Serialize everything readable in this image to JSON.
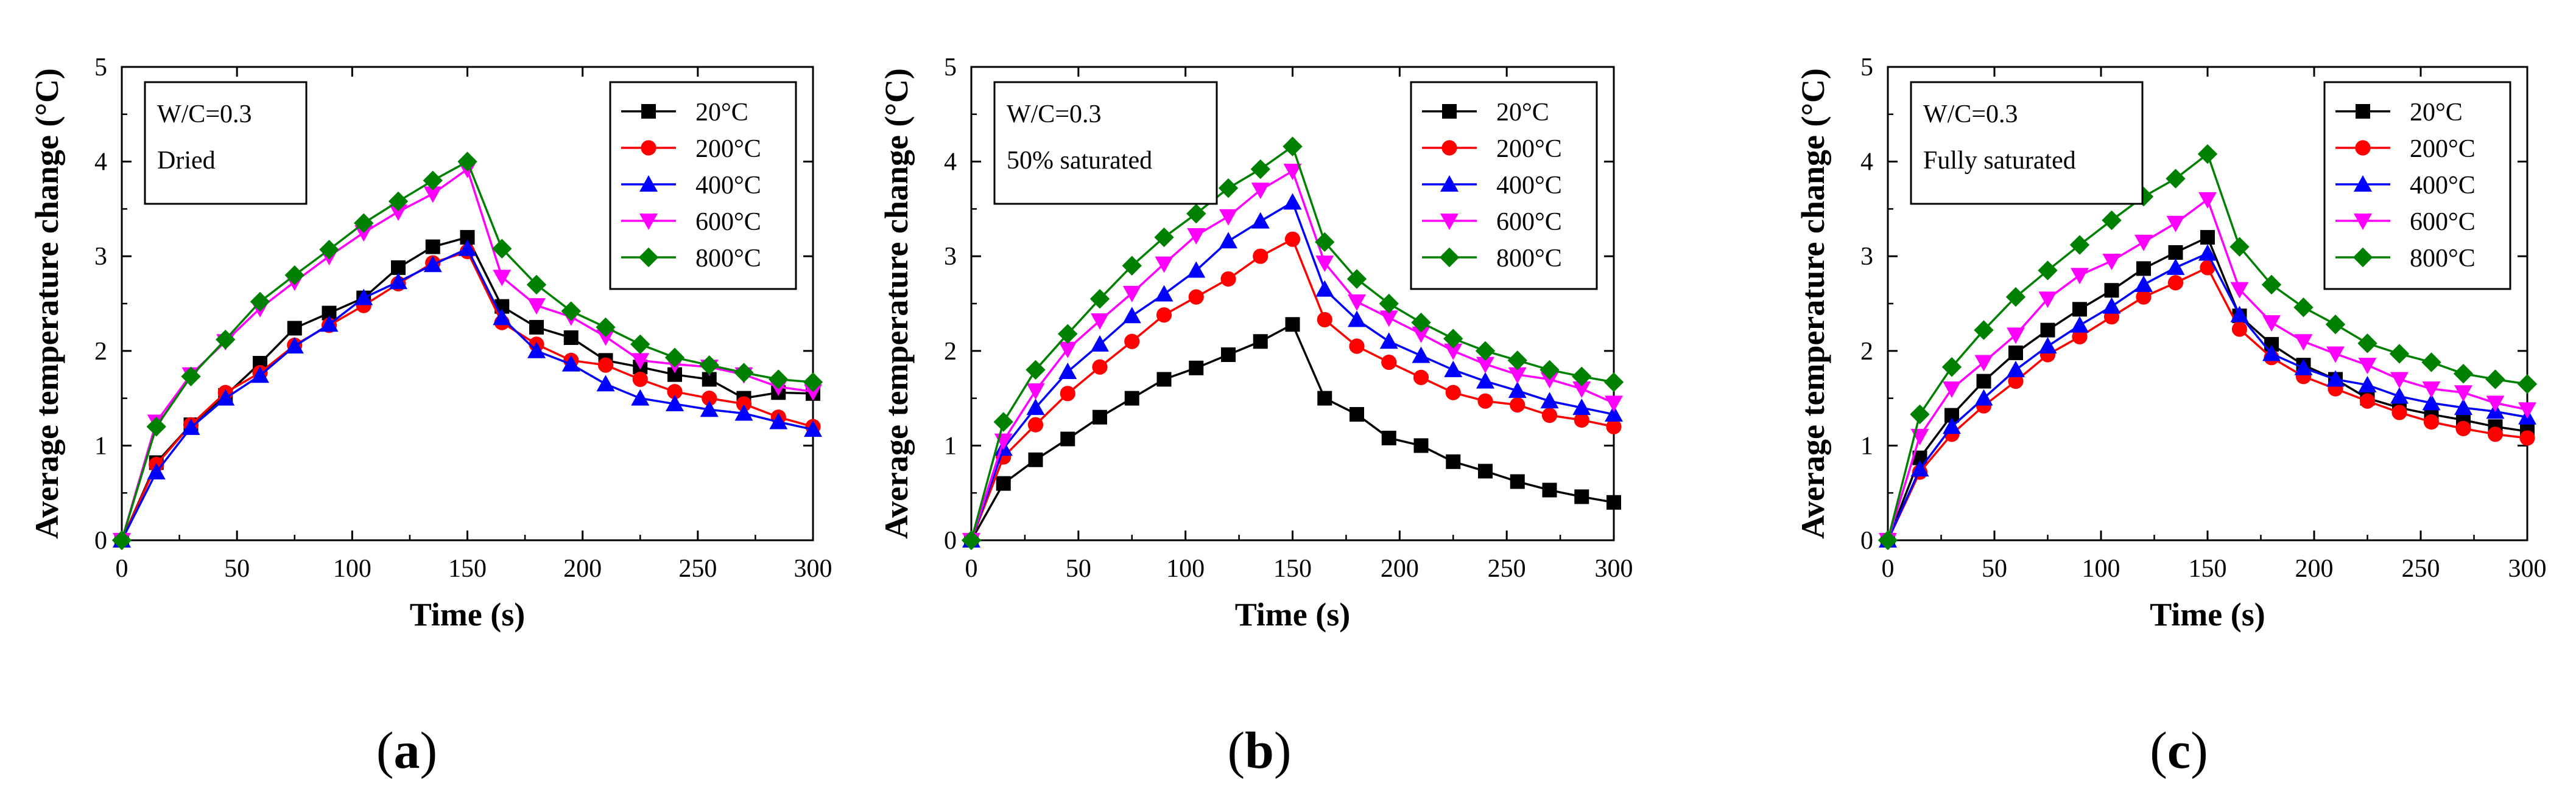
{
  "figure": {
    "panels": [
      "a",
      "b",
      "c"
    ]
  },
  "chart_data": [
    {
      "type": "line",
      "caption_label": "a",
      "title": "",
      "xlabel": "Time (s)",
      "ylabel": "Average temperature change (°C)",
      "xlim": [
        0,
        300
      ],
      "ylim": [
        0,
        5
      ],
      "xticks": [
        0,
        50,
        100,
        150,
        200,
        250,
        300
      ],
      "yticks": [
        0,
        1,
        2,
        3,
        4,
        5
      ],
      "annotation": [
        "W/C=0.3",
        "Dried"
      ],
      "legend_position": "top-right",
      "x": [
        0,
        15,
        30,
        45,
        60,
        75,
        90,
        105,
        120,
        135,
        150,
        165,
        180,
        195,
        210,
        225,
        240,
        255,
        270,
        285,
        300
      ],
      "series": [
        {
          "name": "20°C",
          "color": "#000000",
          "marker": "square",
          "values": [
            0,
            0.82,
            1.22,
            1.53,
            1.87,
            2.24,
            2.4,
            2.56,
            2.88,
            3.1,
            3.2,
            2.47,
            2.25,
            2.14,
            1.9,
            1.83,
            1.75,
            1.7,
            1.5,
            1.56,
            1.55
          ]
        },
        {
          "name": "200°C",
          "color": "#ff0000",
          "marker": "circle",
          "values": [
            0,
            0.8,
            1.22,
            1.56,
            1.77,
            2.06,
            2.27,
            2.48,
            2.71,
            2.93,
            3.05,
            2.3,
            2.07,
            1.9,
            1.85,
            1.7,
            1.57,
            1.5,
            1.44,
            1.3,
            1.2
          ]
        },
        {
          "name": "400°C",
          "color": "#0000ff",
          "marker": "triangle-up",
          "values": [
            0,
            0.72,
            1.19,
            1.5,
            1.74,
            2.05,
            2.28,
            2.56,
            2.73,
            2.91,
            3.08,
            2.35,
            2.0,
            1.86,
            1.65,
            1.5,
            1.44,
            1.38,
            1.34,
            1.25,
            1.17
          ]
        },
        {
          "name": "600°C",
          "color": "#ff00ff",
          "marker": "triangle-down",
          "values": [
            0,
            1.25,
            1.75,
            2.1,
            2.45,
            2.73,
            3.0,
            3.25,
            3.47,
            3.66,
            3.92,
            2.78,
            2.48,
            2.36,
            2.15,
            1.9,
            1.86,
            1.83,
            1.75,
            1.62,
            1.57
          ]
        },
        {
          "name": "800°C",
          "color": "#008000",
          "marker": "diamond",
          "values": [
            0,
            1.2,
            1.73,
            2.12,
            2.52,
            2.8,
            3.07,
            3.35,
            3.58,
            3.8,
            4.0,
            3.08,
            2.7,
            2.42,
            2.25,
            2.07,
            1.93,
            1.85,
            1.77,
            1.7,
            1.67
          ]
        }
      ]
    },
    {
      "type": "line",
      "caption_label": "b",
      "title": "",
      "xlabel": "Time (s)",
      "ylabel": "Average temperature change (°C)",
      "xlim": [
        0,
        300
      ],
      "ylim": [
        0,
        5
      ],
      "xticks": [
        0,
        50,
        100,
        150,
        200,
        250,
        300
      ],
      "yticks": [
        0,
        1,
        2,
        3,
        4,
        5
      ],
      "annotation": [
        "W/C=0.3",
        "50% saturated"
      ],
      "legend_position": "top-right",
      "x": [
        0,
        15,
        30,
        45,
        60,
        75,
        90,
        105,
        120,
        135,
        150,
        165,
        180,
        195,
        210,
        225,
        240,
        255,
        270,
        285,
        300
      ],
      "series": [
        {
          "name": "20°C",
          "color": "#000000",
          "marker": "square",
          "values": [
            0,
            0.6,
            0.85,
            1.07,
            1.3,
            1.5,
            1.7,
            1.82,
            1.96,
            2.1,
            2.28,
            1.5,
            1.33,
            1.08,
            1.0,
            0.83,
            0.73,
            0.62,
            0.53,
            0.46,
            0.4
          ]
        },
        {
          "name": "200°C",
          "color": "#ff0000",
          "marker": "circle",
          "values": [
            0,
            0.88,
            1.22,
            1.55,
            1.83,
            2.1,
            2.38,
            2.57,
            2.76,
            3.0,
            3.18,
            2.33,
            2.05,
            1.88,
            1.72,
            1.56,
            1.47,
            1.43,
            1.32,
            1.27,
            1.2
          ]
        },
        {
          "name": "400°C",
          "color": "#0000ff",
          "marker": "triangle-up",
          "values": [
            0,
            0.97,
            1.4,
            1.78,
            2.07,
            2.37,
            2.6,
            2.85,
            3.16,
            3.37,
            3.57,
            2.65,
            2.33,
            2.1,
            1.95,
            1.8,
            1.68,
            1.58,
            1.47,
            1.4,
            1.33
          ]
        },
        {
          "name": "600°C",
          "color": "#ff00ff",
          "marker": "triangle-down",
          "values": [
            0,
            1.05,
            1.58,
            2.02,
            2.32,
            2.61,
            2.92,
            3.22,
            3.42,
            3.7,
            3.9,
            2.93,
            2.52,
            2.35,
            2.18,
            2.0,
            1.86,
            1.75,
            1.7,
            1.6,
            1.45
          ]
        },
        {
          "name": "800°C",
          "color": "#008000",
          "marker": "diamond",
          "values": [
            0,
            1.25,
            1.8,
            2.18,
            2.55,
            2.9,
            3.2,
            3.45,
            3.72,
            3.92,
            4.16,
            3.15,
            2.76,
            2.5,
            2.3,
            2.13,
            2.0,
            1.9,
            1.8,
            1.73,
            1.67
          ]
        }
      ]
    },
    {
      "type": "line",
      "caption_label": "c",
      "title": "",
      "xlabel": "Time (s)",
      "ylabel": "Average temperature change (°C)",
      "xlim": [
        0,
        300
      ],
      "ylim": [
        0,
        5
      ],
      "xticks": [
        0,
        50,
        100,
        150,
        200,
        250,
        300
      ],
      "yticks": [
        0,
        1,
        2,
        3,
        4,
        5
      ],
      "annotation": [
        "W/C=0.3",
        "Fully saturated"
      ],
      "legend_position": "top-right",
      "x": [
        0,
        15,
        30,
        45,
        60,
        75,
        90,
        105,
        120,
        135,
        150,
        165,
        180,
        195,
        210,
        225,
        240,
        255,
        270,
        285,
        300
      ],
      "series": [
        {
          "name": "20°C",
          "color": "#000000",
          "marker": "square",
          "values": [
            0,
            0.87,
            1.32,
            1.68,
            1.98,
            2.22,
            2.44,
            2.64,
            2.87,
            3.04,
            3.2,
            2.37,
            2.07,
            1.85,
            1.7,
            1.5,
            1.4,
            1.33,
            1.27,
            1.2,
            1.15
          ]
        },
        {
          "name": "200°C",
          "color": "#ff0000",
          "marker": "circle",
          "values": [
            0,
            0.72,
            1.12,
            1.42,
            1.68,
            1.96,
            2.15,
            2.36,
            2.57,
            2.72,
            2.88,
            2.23,
            1.93,
            1.73,
            1.6,
            1.47,
            1.35,
            1.25,
            1.18,
            1.12,
            1.08
          ]
        },
        {
          "name": "400°C",
          "color": "#0000ff",
          "marker": "triangle-up",
          "values": [
            0,
            0.75,
            1.2,
            1.5,
            1.8,
            2.05,
            2.27,
            2.47,
            2.7,
            2.88,
            3.03,
            2.38,
            1.97,
            1.82,
            1.7,
            1.64,
            1.52,
            1.45,
            1.4,
            1.36,
            1.3
          ]
        },
        {
          "name": "600°C",
          "color": "#ff00ff",
          "marker": "triangle-down",
          "values": [
            0,
            1.1,
            1.6,
            1.88,
            2.17,
            2.55,
            2.8,
            2.95,
            3.15,
            3.35,
            3.6,
            2.65,
            2.3,
            2.1,
            1.97,
            1.85,
            1.7,
            1.6,
            1.56,
            1.45,
            1.38
          ]
        },
        {
          "name": "800°C",
          "color": "#008000",
          "marker": "diamond",
          "values": [
            0,
            1.33,
            1.83,
            2.22,
            2.57,
            2.85,
            3.12,
            3.38,
            3.63,
            3.82,
            4.08,
            3.1,
            2.7,
            2.46,
            2.28,
            2.08,
            1.97,
            1.88,
            1.76,
            1.7,
            1.65
          ]
        }
      ]
    }
  ]
}
